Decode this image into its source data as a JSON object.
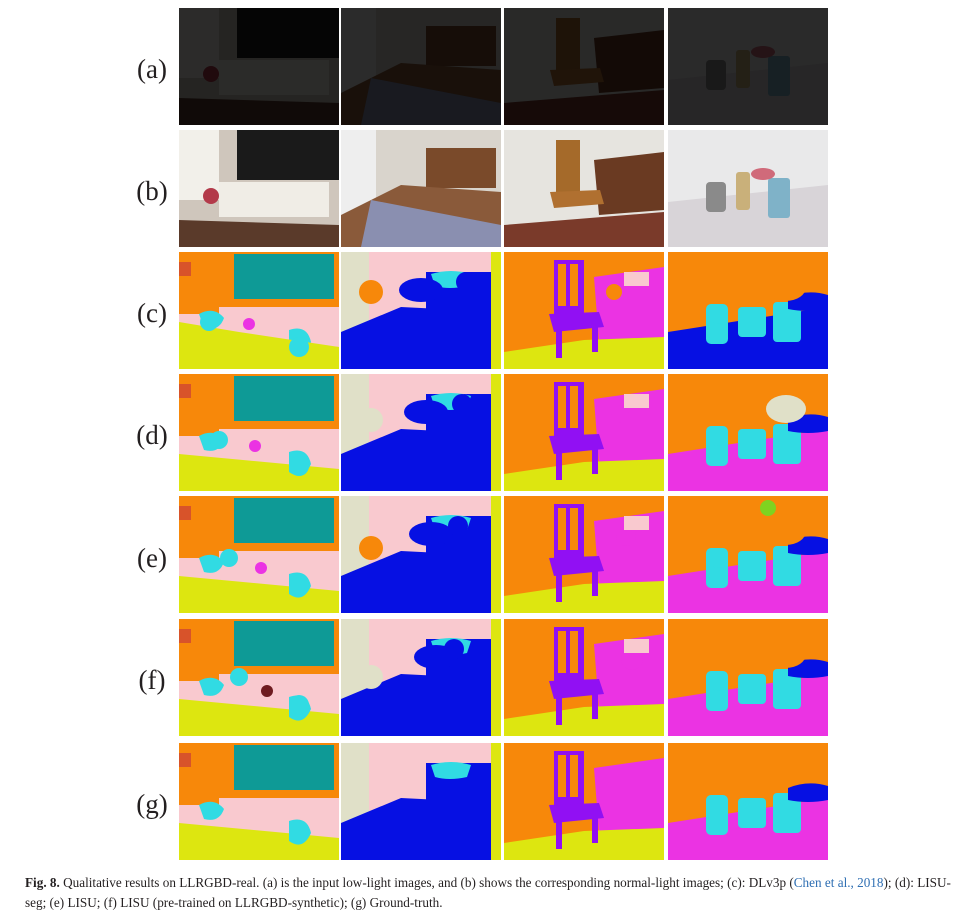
{
  "figure": {
    "row_labels": [
      "(a)",
      "(b)",
      "(c)",
      "(d)",
      "(e)",
      "(f)",
      "(g)"
    ],
    "palette": {
      "wall": "#f9c9cf",
      "floor": "#dde610",
      "furniture": "#f7880a",
      "tv": "#0e9a96",
      "bed": "#0610e3",
      "object": "#31dbe3",
      "chair": "#9110f3",
      "table": "#eb33e3",
      "sofa": "#e0e0c8",
      "plant": "#6e1b20",
      "lamp": "#7fd320"
    }
  },
  "caption": {
    "label": "Fig. 8.",
    "text_before": "Qualitative results on LLRGBD-real. (a) is the input low-light images, and (b) shows the corresponding normal-light images; (c): DLv3p (",
    "citation": "Chen et al., 2018",
    "text_after": "); (d): LISU-seg; (e) LISU; (f) LISU (pre-trained on LLRGBD-synthetic); (g) Ground-truth."
  }
}
